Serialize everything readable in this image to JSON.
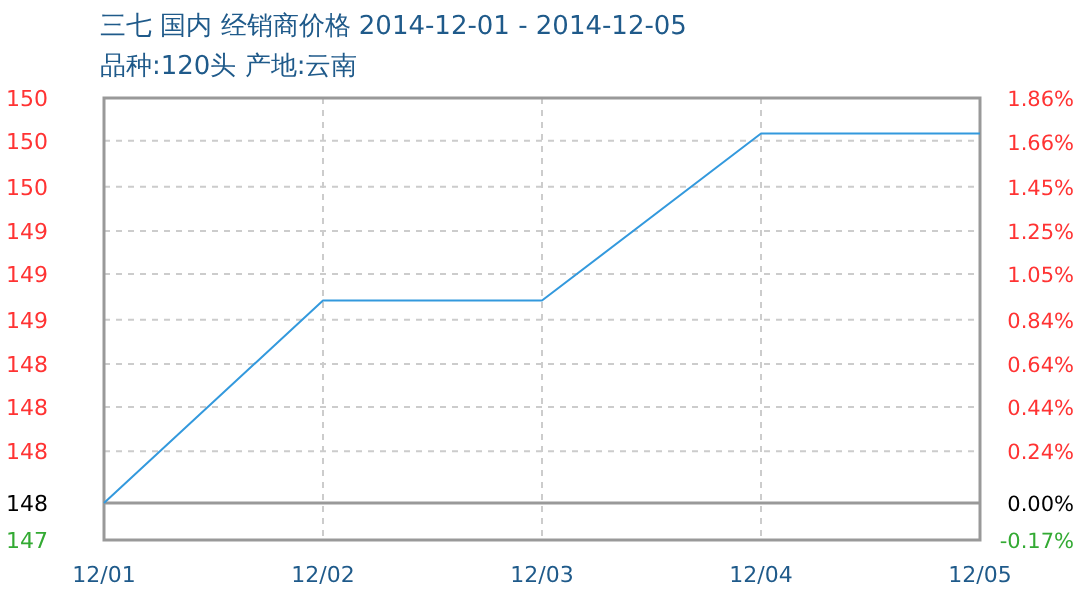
{
  "chart_data": {
    "type": "line",
    "title": "三七 国内 经销商价格 2014-12-01 - 2014-12-05",
    "subtitle": "品种:120头 产地:云南",
    "categories": [
      "12/01",
      "12/02",
      "12/03",
      "12/04",
      "12/05"
    ],
    "series": [
      {
        "color": "#3399dd",
        "values": [
          147.5,
          148.87,
          148.87,
          150.0,
          150.0
        ]
      }
    ],
    "ylim": [
      147.25,
      150.24
    ],
    "yticks": [
      {
        "value": 150.24,
        "label": "150"
      },
      {
        "value": 149.95,
        "label": "150"
      },
      {
        "value": 149.64,
        "label": "150"
      },
      {
        "value": 149.34,
        "label": "149"
      },
      {
        "value": 149.05,
        "label": "149"
      },
      {
        "value": 148.74,
        "label": "149"
      },
      {
        "value": 148.44,
        "label": "148"
      },
      {
        "value": 148.15,
        "label": "148"
      },
      {
        "value": 147.85,
        "label": "148"
      },
      {
        "value": 147.5,
        "label": "148"
      },
      {
        "value": 147.25,
        "label": "147"
      }
    ],
    "y2lim": [
      -0.17,
      1.86
    ],
    "y2ticks": [
      {
        "value": 1.86,
        "label": "1.86%"
      },
      {
        "value": 1.66,
        "label": "1.66%"
      },
      {
        "value": 1.45,
        "label": "1.45%"
      },
      {
        "value": 1.25,
        "label": "1.25%"
      },
      {
        "value": 1.05,
        "label": "1.05%"
      },
      {
        "value": 0.84,
        "label": "0.84%"
      },
      {
        "value": 0.64,
        "label": "0.64%"
      },
      {
        "value": 0.44,
        "label": "0.44%"
      },
      {
        "value": 0.24,
        "label": "0.24%"
      },
      {
        "value": 0,
        "label": "0.00%"
      },
      {
        "value": -0.17,
        "label": "-0.17%"
      }
    ],
    "ref_lines": [
      {
        "axis": "y2",
        "value": 0,
        "color": "#999999",
        "line_style": "solid"
      }
    ],
    "grid": true,
    "marker": "none",
    "line_style": "solid"
  }
}
